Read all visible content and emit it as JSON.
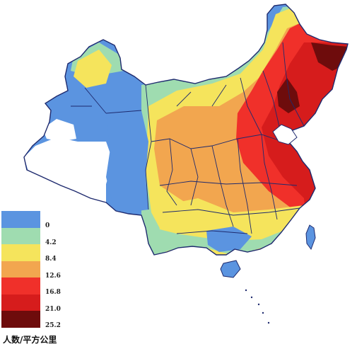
{
  "map": {
    "region": "China",
    "type": "population density choropleth"
  },
  "legend": {
    "unit": "人数/平方公里",
    "items": [
      {
        "label": "0",
        "color": "#5b94e0"
      },
      {
        "label": "4.2",
        "color": "#9fdcb0"
      },
      {
        "label": "8.4",
        "color": "#f5e45c"
      },
      {
        "label": "12.6",
        "color": "#f2a64f"
      },
      {
        "label": "16.8",
        "color": "#f0302a"
      },
      {
        "label": "21.0",
        "color": "#d61c1c"
      },
      {
        "label": "25.2",
        "color": "#6e0c0c"
      }
    ]
  }
}
